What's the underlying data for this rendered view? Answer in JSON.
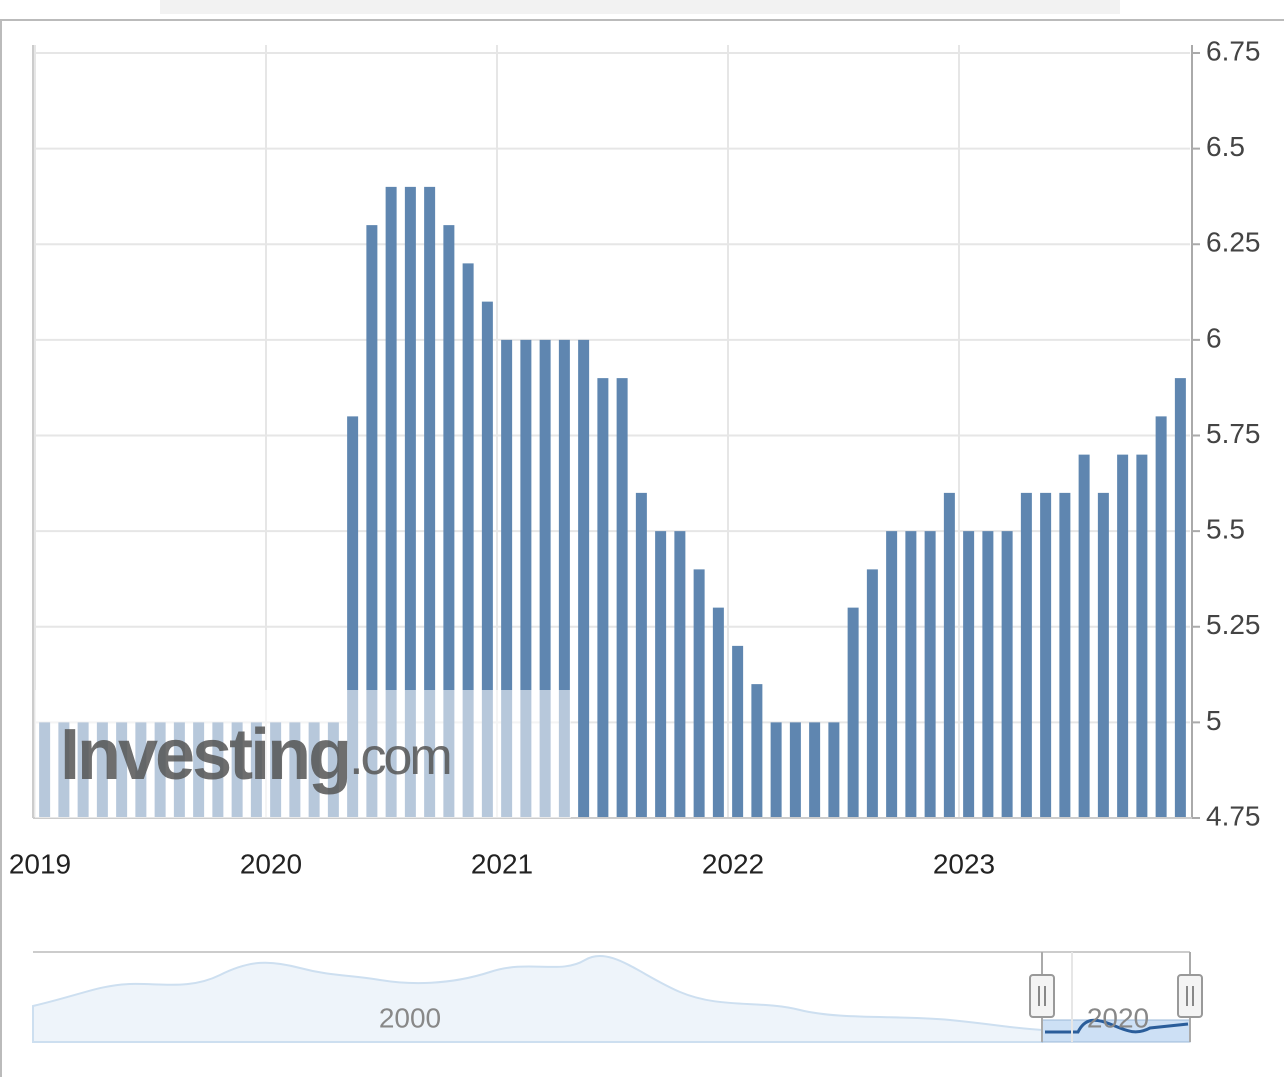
{
  "chart_data": {
    "type": "bar",
    "values": [
      5.0,
      5.0,
      5.0,
      5.0,
      5.0,
      5.0,
      5.0,
      5.0,
      5.0,
      5.0,
      5.0,
      5.0,
      5.0,
      5.0,
      5.0,
      5.0,
      5.8,
      6.3,
      6.4,
      6.4,
      6.4,
      6.3,
      6.2,
      6.1,
      6.0,
      6.0,
      6.0,
      6.0,
      6.0,
      5.9,
      5.9,
      5.6,
      5.5,
      5.5,
      5.4,
      5.3,
      5.2,
      5.1,
      5.0,
      5.0,
      5.0,
      5.0,
      5.3,
      5.4,
      5.5,
      5.5,
      5.5,
      5.6,
      5.5,
      5.5,
      5.5,
      5.6,
      5.6,
      5.6,
      5.7,
      5.6,
      5.7,
      5.7,
      5.8,
      5.9
    ],
    "color": "#5f86b0",
    "ylim": [
      4.75,
      6.75
    ],
    "yticks": [
      4.75,
      5,
      5.25,
      5.5,
      5.75,
      6,
      6.25,
      6.5,
      6.75
    ],
    "xticks": [
      2019,
      2020,
      2021,
      2022,
      2023
    ],
    "grid": true,
    "watermark": [
      "Investing",
      ".com"
    ],
    "navigator_labels": [
      2000,
      2020
    ]
  }
}
